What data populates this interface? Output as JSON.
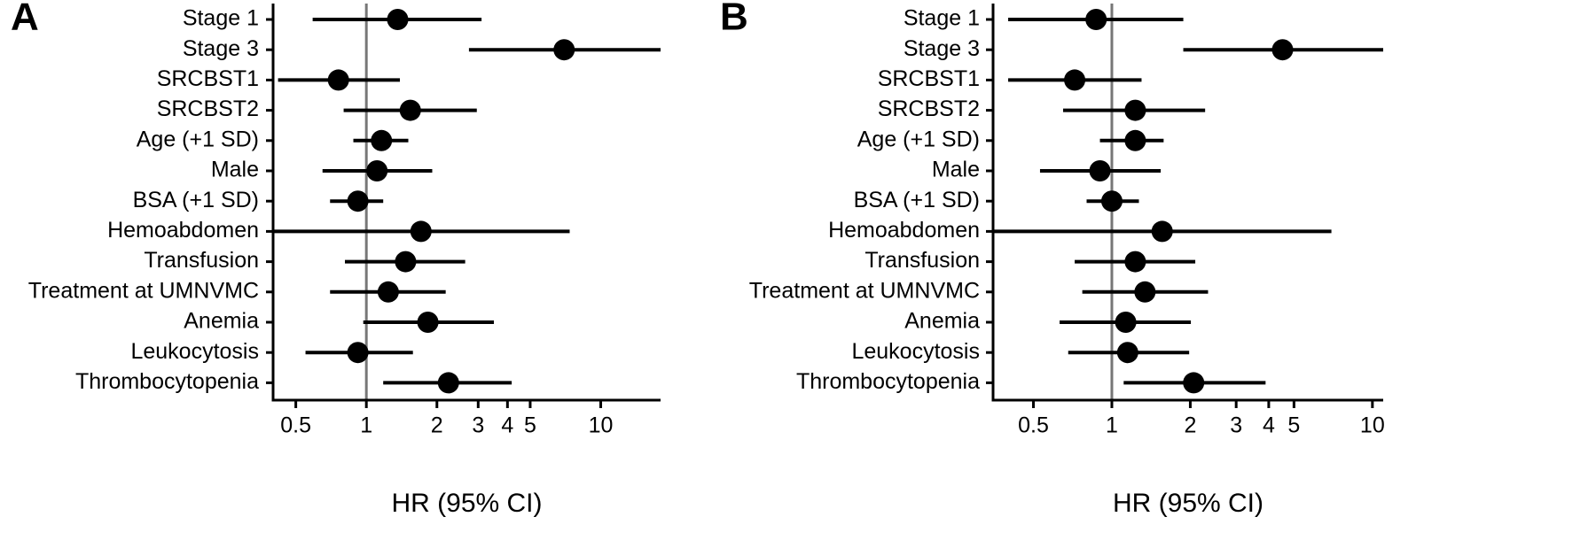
{
  "chart_data": [
    {
      "type": "forest",
      "label": "A",
      "xlabel": "HR (95% CI)",
      "log": true,
      "reference_line": 1,
      "color": "#000000",
      "reference_color": "#777777",
      "categories": [
        "Stage 1",
        "Stage 3",
        "SRCBST1",
        "SRCBST2",
        "Age (+1 SD)",
        "Male",
        "BSA (+1 SD)",
        "Hemoabdomen",
        "Transfusion",
        "Treatment at UMNVMC",
        "Anemia",
        "Leukocytosis",
        "Thrombocytopenia"
      ],
      "values": [
        1.36,
        6.98,
        0.76,
        1.54,
        1.16,
        1.11,
        0.92,
        1.71,
        1.47,
        1.24,
        1.83,
        0.92,
        2.24
      ],
      "lower": [
        0.59,
        2.74,
        0.42,
        0.8,
        0.88,
        0.65,
        0.7,
        0.4,
        0.81,
        0.7,
        0.97,
        0.55,
        1.18
      ],
      "upper": [
        3.1,
        18,
        1.39,
        2.96,
        1.51,
        1.91,
        1.18,
        7.37,
        2.64,
        2.18,
        3.5,
        1.58,
        4.17
      ],
      "xlim": [
        0.4,
        18
      ],
      "xticks": [
        0.5,
        1,
        2,
        3,
        4,
        5,
        10
      ]
    },
    {
      "type": "forest",
      "label": "B",
      "xlabel": "HR (95% CI)",
      "log": true,
      "reference_line": 1,
      "color": "#000000",
      "reference_color": "#777777",
      "categories": [
        "Stage 1",
        "Stage 3",
        "SRCBST1",
        "SRCBST2",
        "Age (+1 SD)",
        "Male",
        "BSA (+1 SD)",
        "Hemoabdomen",
        "Transfusion",
        "Treatment at UMNVMC",
        "Anemia",
        "Leukocytosis",
        "Thrombocytopenia"
      ],
      "values": [
        0.87,
        4.52,
        0.72,
        1.23,
        1.23,
        0.9,
        1.0,
        1.56,
        1.23,
        1.34,
        1.13,
        1.15,
        2.06
      ],
      "lower": [
        0.4,
        1.88,
        0.4,
        0.65,
        0.9,
        0.53,
        0.8,
        0.35,
        0.72,
        0.77,
        0.63,
        0.68,
        1.11
      ],
      "upper": [
        1.88,
        11,
        1.3,
        2.28,
        1.58,
        1.54,
        1.27,
        6.96,
        2.09,
        2.34,
        2.01,
        1.98,
        3.89
      ],
      "xlim": [
        0.35,
        11
      ],
      "xticks": [
        0.5,
        1,
        2,
        3,
        4,
        5,
        10
      ]
    }
  ]
}
